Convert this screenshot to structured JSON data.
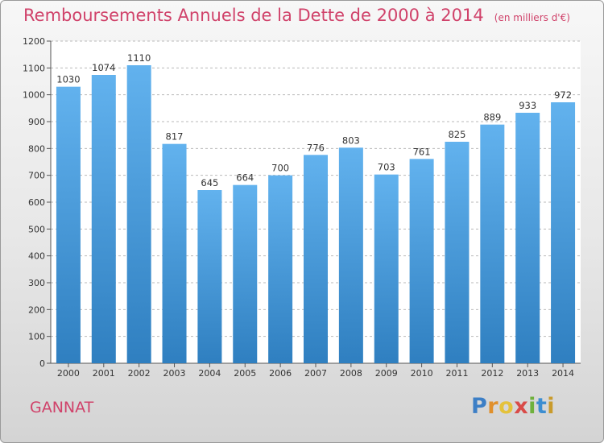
{
  "title": "Remboursements Annuels de la Dette de 2000 à 2014",
  "subtitle": "(en milliers d'€)",
  "commune": "GANNAT",
  "logo": {
    "text": "Proxiti",
    "letters": [
      "P",
      "r",
      "o",
      "x",
      "i",
      "t",
      "i"
    ]
  },
  "colors": {
    "title": "#d0426a",
    "bar_top": "#62b2ee",
    "bar_bottom": "#2f7fc0",
    "grid": "#b9b9b9"
  },
  "chart_data": {
    "type": "bar",
    "title": "Remboursements Annuels de la Dette de 2000 à 2014",
    "subtitle": "(en milliers d'€)",
    "xlabel": "",
    "ylabel": "",
    "categories": [
      "2000",
      "2001",
      "2002",
      "2003",
      "2004",
      "2005",
      "2006",
      "2007",
      "2008",
      "2009",
      "2010",
      "2011",
      "2012",
      "2013",
      "2014"
    ],
    "values": [
      1030,
      1074,
      1110,
      817,
      645,
      664,
      700,
      776,
      803,
      703,
      761,
      825,
      889,
      933,
      972
    ],
    "ylim": [
      0,
      1200
    ],
    "yticks": [
      0,
      100,
      200,
      300,
      400,
      500,
      600,
      700,
      800,
      900,
      1000,
      1100,
      1200
    ],
    "grid": true,
    "legend": "none"
  }
}
